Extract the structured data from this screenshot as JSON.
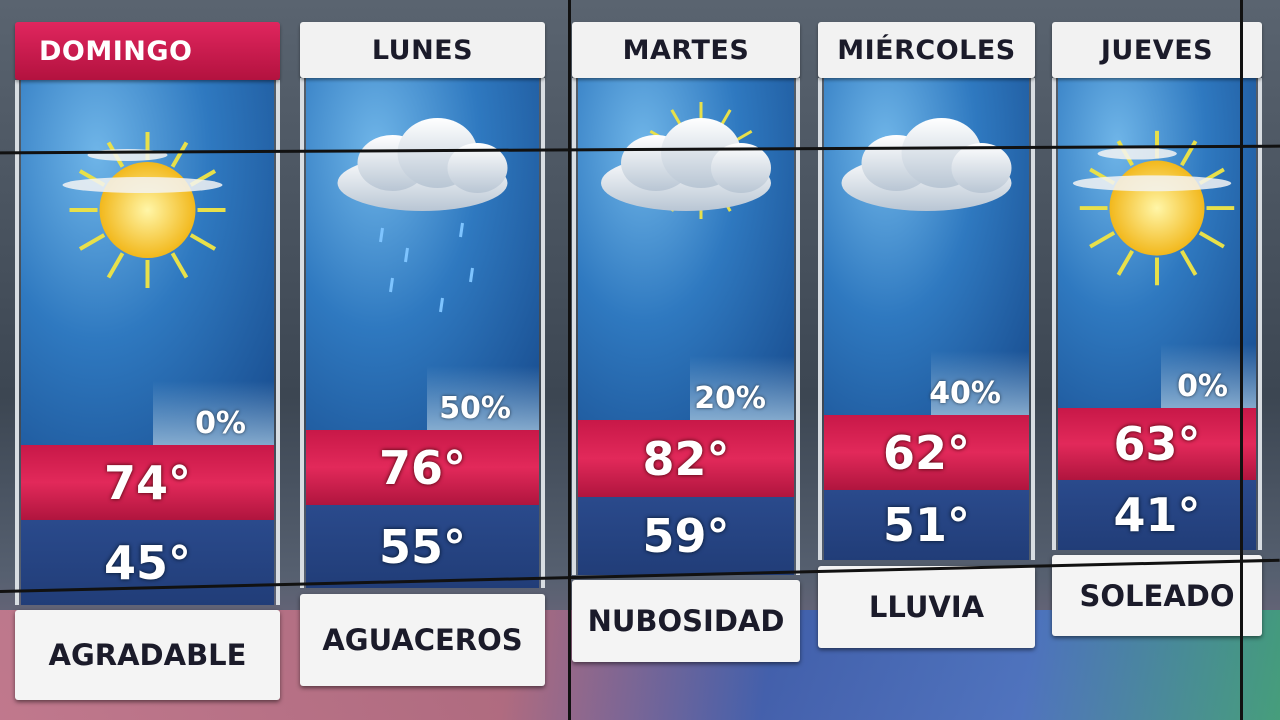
{
  "forecast": {
    "days": [
      {
        "day": "DOMINGO",
        "icon": "sun-partly-cloudy-icon",
        "precip": "0%",
        "high": "74°",
        "low": "45°",
        "condition": "AGRADABLE",
        "today": true
      },
      {
        "day": "LUNES",
        "icon": "cloud-rain-icon",
        "precip": "50%",
        "high": "76°",
        "low": "55°",
        "condition": "AGUACEROS",
        "today": false
      },
      {
        "day": "MARTES",
        "icon": "cloud-sun-icon",
        "precip": "20%",
        "high": "82°",
        "low": "59°",
        "condition": "NUBOSIDAD",
        "today": false
      },
      {
        "day": "MIÉRCOLES",
        "icon": "cloud-icon",
        "precip": "40%",
        "high": "62°",
        "low": "51°",
        "condition": "LLUVIA",
        "today": false
      },
      {
        "day": "JUEVES",
        "icon": "sun-partly-cloudy-icon",
        "precip": "0%",
        "high": "63°",
        "low": "41°",
        "condition": "SOLEADO",
        "today": false
      }
    ]
  },
  "colors": {
    "today_header": "#d11f52",
    "high_band": "#d8204f",
    "low_band": "#25427f",
    "sky": "#2f79c0"
  }
}
